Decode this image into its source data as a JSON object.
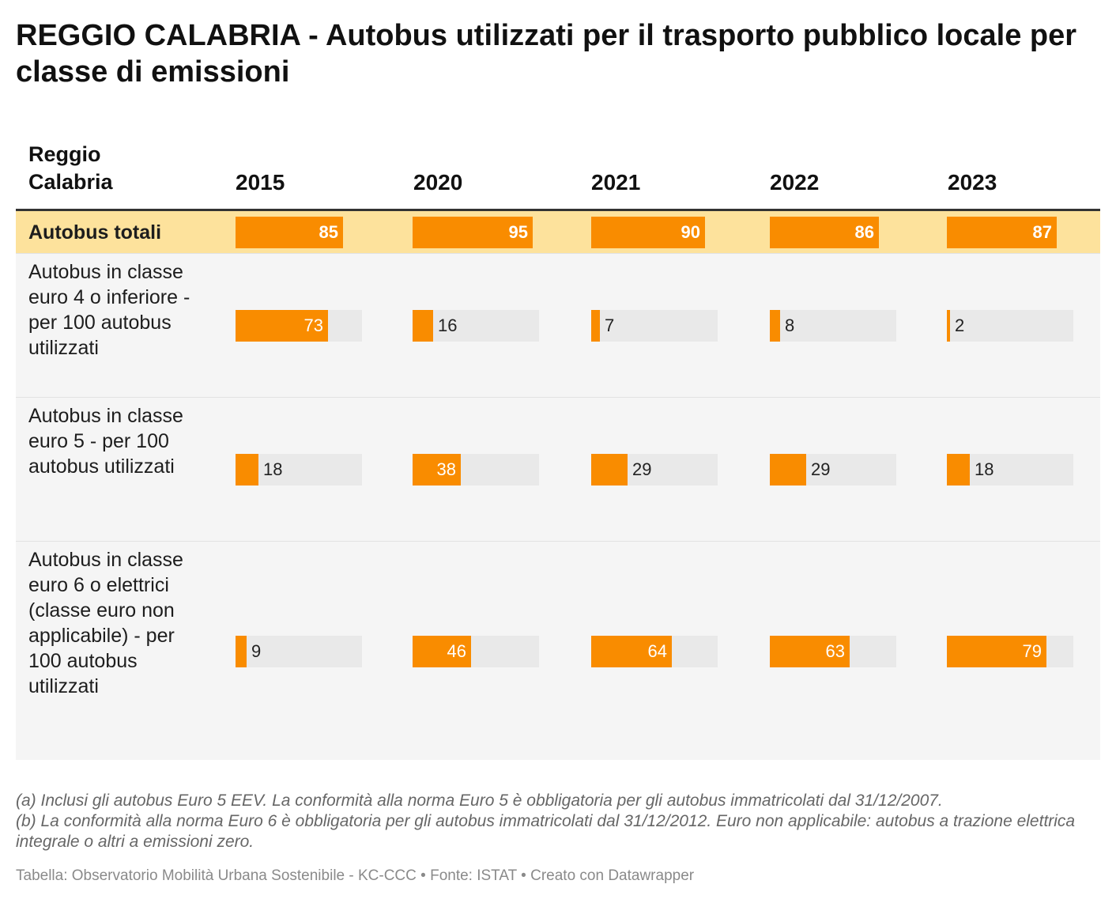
{
  "title": "REGGIO CALABRIA - Autobus utilizzati per il trasporto pubblico locale per classe di emissioni",
  "stub_header": "Reggio Calabria",
  "colors": {
    "bar": "#f98c00",
    "track": "#e9e9e9",
    "highlight": "#fde29c"
  },
  "chart_data": {
    "type": "table",
    "columns": [
      "2015",
      "2020",
      "2021",
      "2022",
      "2023"
    ],
    "scale_max": 100,
    "rows": [
      {
        "label": "Autobus totali",
        "highlight": true,
        "values": [
          85,
          95,
          90,
          86,
          87
        ]
      },
      {
        "label": "Autobus in classe euro 4 o inferiore - per 100 autobus utilizzati",
        "values": [
          73,
          16,
          7,
          8,
          2
        ]
      },
      {
        "label": "Autobus in classe euro 5 - per 100 autobus utilizzati",
        "values": [
          18,
          38,
          29,
          29,
          18
        ]
      },
      {
        "label": "Autobus in classe euro 6 o elettrici (classe euro non applicabile) - per 100 autobus utilizzati",
        "values": [
          9,
          46,
          64,
          63,
          79
        ]
      }
    ]
  },
  "notes": {
    "a": "(a) Inclusi gli autobus Euro 5 EEV. La conformità alla norma Euro 5 è obbligatoria per gli autobus immatricolati dal 31/12/2007.",
    "b": "(b) La conformità alla norma Euro 6 è obbligatoria per gli autobus immatricolati dal 31/12/2012. Euro non applicabile: autobus a trazione elettrica integrale o altri a emissioni zero."
  },
  "footer": "Tabella: Observatorio Mobilità Urbana Sostenibile - KC-CCC • Fonte: ISTAT • Creato con Datawrapper"
}
